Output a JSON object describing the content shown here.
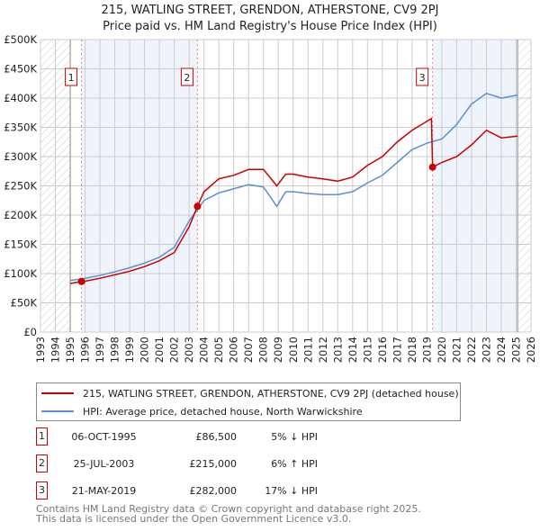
{
  "title": "215, WATLING STREET, GRENDON, ATHERSTONE, CV9 2PJ",
  "subtitle": "Price paid vs. HM Land Registry's House Price Index (HPI)",
  "colors": {
    "property": "#cc0000",
    "hpi": "#5b8fd0"
  },
  "chart_data": {
    "type": "line",
    "xlim": [
      1993,
      2026
    ],
    "ylim": [
      0,
      500000
    ],
    "x_ticks": [
      "1993",
      "1994",
      "1995",
      "1996",
      "1997",
      "1998",
      "1999",
      "2000",
      "2001",
      "2002",
      "2003",
      "2004",
      "2005",
      "2006",
      "2007",
      "2008",
      "2009",
      "2010",
      "2011",
      "2012",
      "2013",
      "2014",
      "2015",
      "2016",
      "2017",
      "2018",
      "2019",
      "2020",
      "2021",
      "2022",
      "2023",
      "2024",
      "2025",
      "2026"
    ],
    "y_ticks": [
      {
        "v": 0,
        "label": "£0"
      },
      {
        "v": 50000,
        "label": "£50K"
      },
      {
        "v": 100000,
        "label": "£100K"
      },
      {
        "v": 150000,
        "label": "£150K"
      },
      {
        "v": 200000,
        "label": "£200K"
      },
      {
        "v": 250000,
        "label": "£250K"
      },
      {
        "v": 300000,
        "label": "£300K"
      },
      {
        "v": 350000,
        "label": "£350K"
      },
      {
        "v": 400000,
        "label": "£400K"
      },
      {
        "v": 450000,
        "label": "£450K"
      },
      {
        "v": 500000,
        "label": "£500K"
      }
    ],
    "series": [
      {
        "name": "215, WATLING STREET, GRENDON, ATHERSTONE, CV9 2PJ (detached house)",
        "x": [
          1995,
          1995.76,
          1996,
          1997,
          1998,
          1999,
          2000,
          2001,
          2002,
          2003,
          2003.56,
          2004,
          2005,
          2006,
          2007,
          2008,
          2008.9,
          2009.5,
          2010,
          2011,
          2012,
          2013,
          2014,
          2015,
          2016,
          2017,
          2018,
          2019.3,
          2019.38,
          2020,
          2021,
          2022,
          2023,
          2024,
          2025.1
        ],
        "y": [
          83000,
          86500,
          87000,
          92000,
          98000,
          104000,
          112000,
          122000,
          136000,
          180000,
          215000,
          240000,
          262000,
          268000,
          278000,
          278000,
          250000,
          270000,
          270000,
          265000,
          262000,
          258000,
          265000,
          285000,
          300000,
          325000,
          345000,
          365000,
          282000,
          290000,
          300000,
          320000,
          345000,
          332000,
          335000
        ]
      },
      {
        "name": "HPI: Average price, detached house, North Warwickshire",
        "x": [
          1995,
          1996,
          1997,
          1998,
          1999,
          2000,
          2001,
          2002,
          2003,
          2004,
          2005,
          2006,
          2007,
          2008,
          2008.9,
          2009.5,
          2010,
          2011,
          2012,
          2013,
          2014,
          2015,
          2016,
          2017,
          2018,
          2019,
          2020,
          2021,
          2022,
          2023,
          2024,
          2025.1
        ],
        "y": [
          88000,
          92000,
          97000,
          103000,
          110000,
          118000,
          128000,
          145000,
          190000,
          225000,
          238000,
          245000,
          252000,
          248000,
          215000,
          240000,
          240000,
          237000,
          235000,
          235000,
          240000,
          255000,
          268000,
          290000,
          312000,
          323000,
          330000,
          355000,
          390000,
          408000,
          400000,
          405000
        ]
      }
    ],
    "sales": [
      {
        "label": "1",
        "x": 1995.76,
        "y": 86500
      },
      {
        "label": "2",
        "x": 2003.56,
        "y": 215000
      },
      {
        "label": "3",
        "x": 2019.38,
        "y": 282000
      }
    ],
    "shaded": [
      [
        1995.76,
        2003.56
      ],
      [
        2019.38,
        2025.1
      ]
    ],
    "hatched": [
      [
        1993,
        1995
      ],
      [
        2025.1,
        2026
      ]
    ]
  },
  "table": [
    {
      "n": "1",
      "date": "06-OCT-1995",
      "price": "£86,500",
      "hpi": "5% ↓ HPI"
    },
    {
      "n": "2",
      "date": "25-JUL-2003",
      "price": "£215,000",
      "hpi": "6% ↑ HPI"
    },
    {
      "n": "3",
      "date": "21-MAY-2019",
      "price": "£282,000",
      "hpi": "17% ↓ HPI"
    }
  ],
  "footer": [
    "Contains HM Land Registry data © Crown copyright and database right 2025.",
    "This data is licensed under the Open Government Licence v3.0."
  ]
}
